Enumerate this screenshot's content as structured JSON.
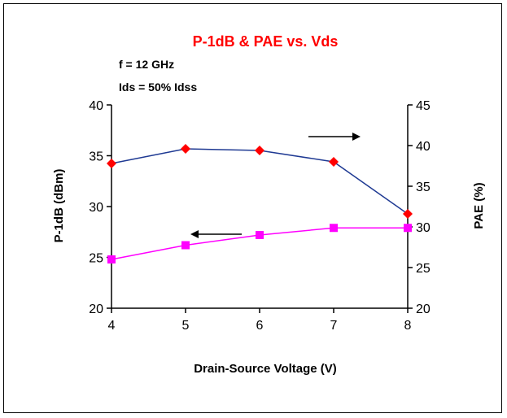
{
  "chart_data": {
    "type": "line",
    "title": "P-1dB & PAE vs. Vds",
    "title_color": "#ff0000",
    "annotations": [
      "f = 12 GHz",
      "Ids = 50% Idss"
    ],
    "xlabel": "Drain-Source Voltage (V)",
    "ylabel_left": "P-1dB (dBm)",
    "ylabel_right": "PAE (%)",
    "x": [
      4,
      5,
      6,
      7,
      8
    ],
    "x_ticks": [
      "4",
      "5",
      "6",
      "7",
      "8"
    ],
    "xlim": [
      4,
      8
    ],
    "ylim_left": [
      20,
      40
    ],
    "ylim_right": [
      20,
      45
    ],
    "y_ticks_left": [
      "20",
      "25",
      "30",
      "35",
      "40"
    ],
    "y_ticks_right": [
      "20",
      "25",
      "30",
      "35",
      "40",
      "45"
    ],
    "grid": false,
    "series": [
      {
        "axis": "right",
        "values": [
          37.8,
          39.6,
          39.4,
          38,
          31.6
        ],
        "line_color": "#1f3a93",
        "marker": "diamond",
        "marker_color": "#ff0000",
        "arrow": "right"
      },
      {
        "axis": "left",
        "values": [
          24.8,
          26.2,
          27.2,
          27.9,
          27.9
        ],
        "line_color": "#ff00ff",
        "marker": "square",
        "marker_color": "#ff00ff",
        "arrow": "left"
      }
    ]
  }
}
